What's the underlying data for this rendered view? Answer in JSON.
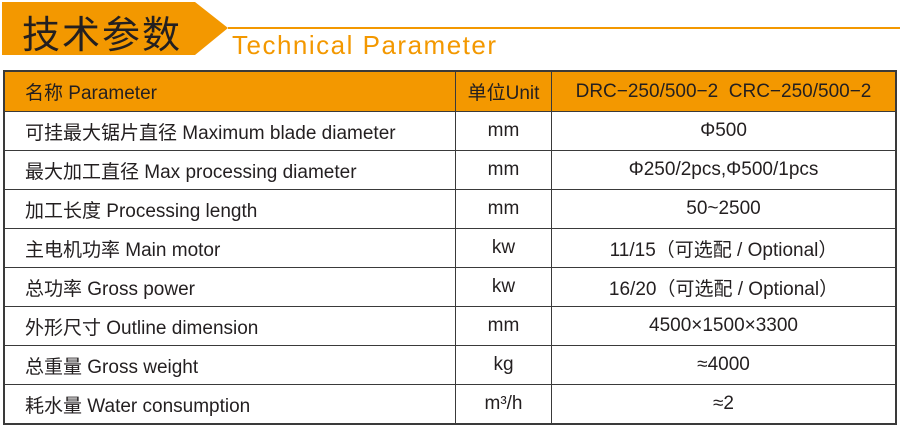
{
  "header": {
    "title_cn": "技术参数",
    "title_en": "Technical Parameter"
  },
  "table": {
    "columns": [
      "名称 Parameter",
      "单位Unit",
      "DRC−250/500−2  CRC−250/500−2"
    ],
    "rows": [
      [
        "可挂最大锯片直径 Maximum blade diameter",
        "mm",
        "Φ500"
      ],
      [
        "最大加工直径 Max processing diameter",
        "mm",
        "Φ250/2pcs,Φ500/1pcs"
      ],
      [
        "加工长度 Processing length",
        "mm",
        "50~2500"
      ],
      [
        "主电机功率 Main motor",
        "kw",
        "11/15（可选配 / Optional）"
      ],
      [
        "总功率 Gross power",
        "kw",
        "16/20（可选配 / Optional）"
      ],
      [
        "外形尺寸 Outline dimension",
        "mm",
        "4500×1500×3300"
      ],
      [
        "总重量 Gross weight",
        "kg",
        "≈4000"
      ],
      [
        "耗水量 Water consumption",
        "m³/h",
        "≈2"
      ]
    ]
  },
  "colors": {
    "accent": "#f39800",
    "border": "#3a3a3a"
  }
}
